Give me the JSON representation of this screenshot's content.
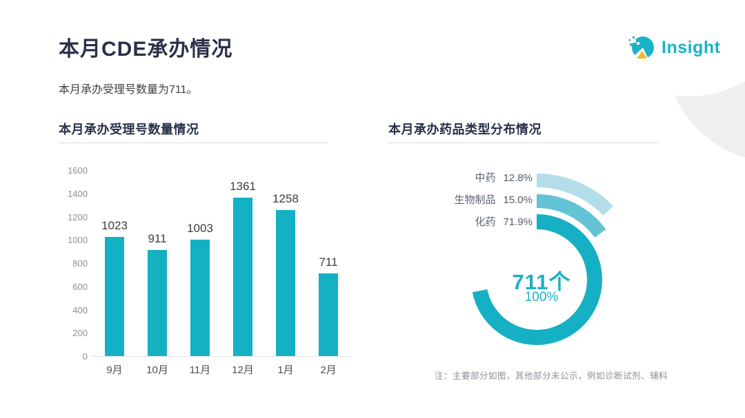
{
  "page": {
    "title": "本月CDE承办情况",
    "subtitle": "本月承办受理号数量为711。"
  },
  "logo": {
    "text": "Insight",
    "icon": "insight-pie-logo"
  },
  "colors": {
    "accent_teal": "#14b1c5",
    "teal_mid": "#64c3d5",
    "teal_light": "#b3dde9",
    "title_navy": "#293049",
    "logo_yellow": "#f2b632"
  },
  "chart_data": [
    {
      "type": "bar",
      "title": "本月承办受理号数量情况",
      "categories": [
        "9月",
        "10月",
        "11月",
        "12月",
        "1月",
        "2月"
      ],
      "values": [
        1023,
        911,
        1003,
        1361,
        1258,
        711
      ],
      "xlabel": "",
      "ylabel": "",
      "ylim": [
        0,
        1600
      ],
      "ytick_step": 200,
      "grid": false,
      "bar_color": "#14b1c5",
      "value_labels": true
    },
    {
      "type": "pie",
      "variant": "concentric-arc-donut",
      "title": "本月承办药品类型分布情况",
      "slices": [
        {
          "label": "中药",
          "pct": 12.8,
          "color": "#b3dde9"
        },
        {
          "label": "生物制品",
          "pct": 15.0,
          "color": "#64c3d5"
        },
        {
          "label": "化药",
          "pct": 71.9,
          "color": "#16b0c5"
        }
      ],
      "center_value": "711个",
      "center_pct": "100%",
      "legend_position": "left",
      "note": "注：主要部分如图，其他部分未公示，例如诊断试剂、辅料"
    }
  ]
}
